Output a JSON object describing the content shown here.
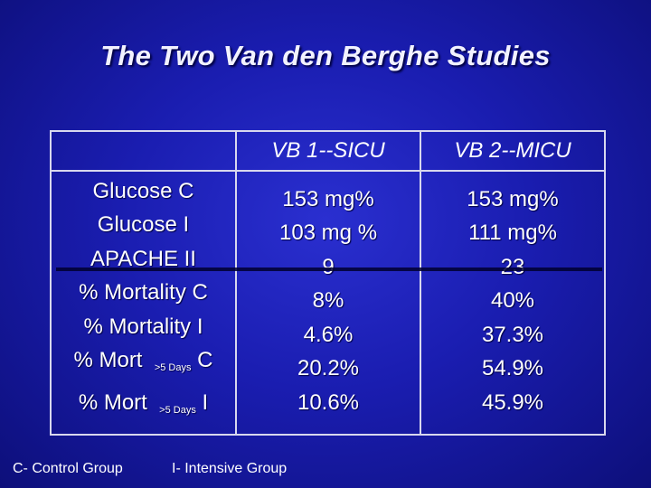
{
  "slide": {
    "title": "The Two Van den Berghe Studies"
  },
  "table": {
    "header": [
      "",
      "VB 1--SICU",
      "VB 2--MICU"
    ],
    "rows": [
      {
        "label": "Glucose C",
        "vb1": "153 mg%",
        "vb2": "153 mg%"
      },
      {
        "label": "Glucose I",
        "vb1": "103 mg %",
        "vb2": "111 mg%"
      },
      {
        "label": "APACHE II",
        "vb1": "9",
        "vb2": "23"
      },
      {
        "label": "% Mortality C",
        "vb1": "8%",
        "vb2": "40%"
      },
      {
        "label": "% Mortality I",
        "vb1": "4.6%",
        "vb2": "37.3%"
      },
      {
        "label_main": "% Mort",
        "label_sub": ">5 Days",
        "label_suffix": "C",
        "vb1": "20.2%",
        "vb2": "54.9%"
      },
      {
        "label_main": "% Mort",
        "label_sub": ">5 Days",
        "label_suffix": "I",
        "vb1": "10.6%",
        "vb2": "45.9%"
      }
    ]
  },
  "footer": {
    "left": "C- Control Group",
    "right": "I- Intensive Group"
  },
  "colors": {
    "background": "#1a1db0",
    "text": "#ffffff",
    "table_border": "#d8d8ee"
  }
}
